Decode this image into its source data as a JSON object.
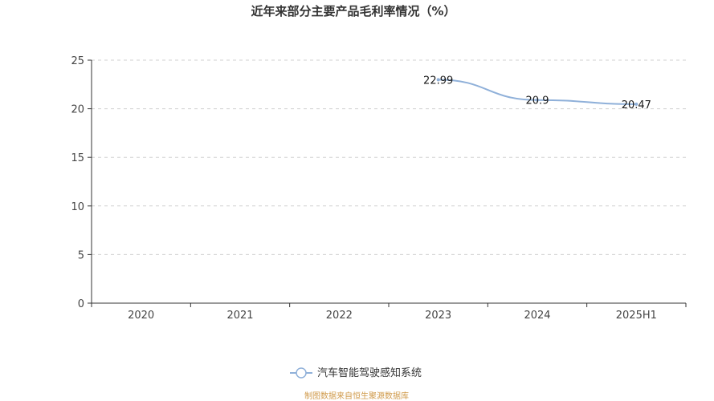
{
  "chart_data": {
    "type": "line",
    "title": "近年来部分主要产品毛利率情况（%）",
    "categories": [
      "2020",
      "2021",
      "2022",
      "2023",
      "2024",
      "2025H1"
    ],
    "series": [
      {
        "name": "汽车智能驾驶感知系统",
        "values": [
          null,
          null,
          null,
          22.99,
          20.9,
          20.47
        ]
      }
    ],
    "y_ticks": [
      "0",
      "5",
      "10",
      "15",
      "20",
      "25"
    ],
    "data_labels": [
      "22.99",
      "20.9",
      "20.47"
    ],
    "ylim": [
      0,
      25
    ],
    "grid": true,
    "legend_position": "bottom-center",
    "xlabel": "",
    "ylabel": ""
  },
  "source_note": "制图数据来自恒生聚源数据库",
  "colors": {
    "series": "#8fb0d9",
    "grid": "#d0d0d0",
    "axis": "#333333",
    "source": "#d09a4a"
  }
}
